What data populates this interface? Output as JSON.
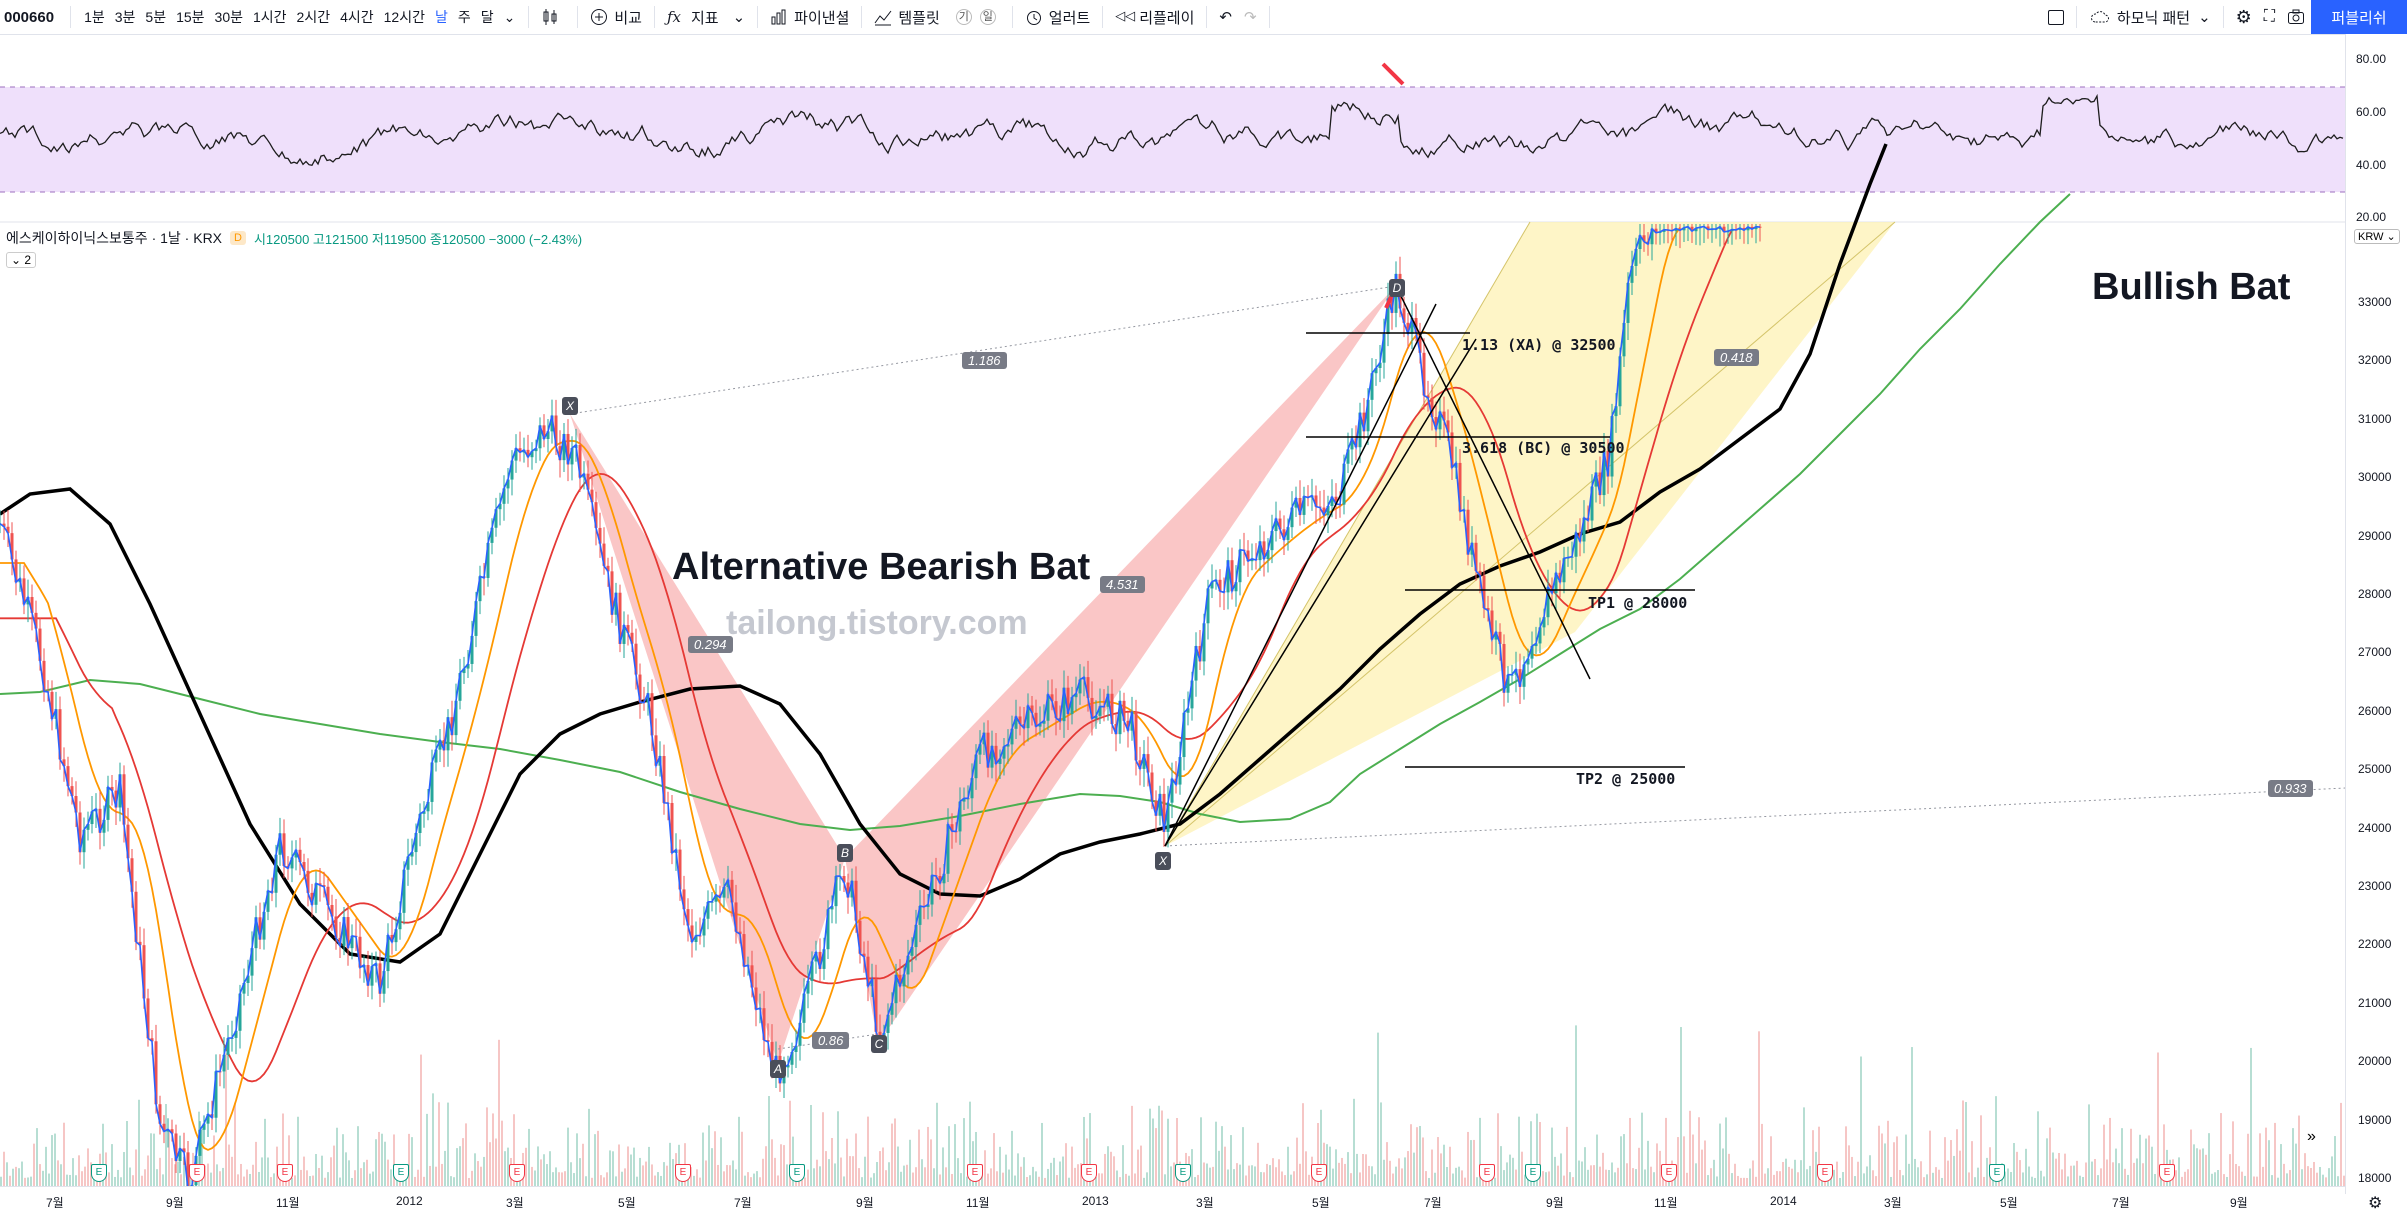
{
  "toolbar": {
    "symbol": "000660",
    "intervals": [
      "1분",
      "3분",
      "5분",
      "15분",
      "30분",
      "1시간",
      "2시간",
      "4시간",
      "12시간",
      "날",
      "주",
      "달"
    ],
    "active_interval": "날",
    "compare": "비교",
    "indicators": "지표",
    "pine_editor": "파이낸셜",
    "templates": "템플릿",
    "template_badges": [
      "기",
      "일"
    ],
    "alert": "얼러트",
    "replay": "리플레이",
    "harmonic": "하모닉 패턴",
    "publish": "퍼블리쉬"
  },
  "legend": {
    "name": "에스케이하이닉스보통주 · 1날 · KRX",
    "badge": "D",
    "ohlc": "시120500 고121500 저119500 종120500 −3000 (−2.43%)",
    "count": "2"
  },
  "currency": "KRW",
  "rsi_axis": [
    "80.00",
    "60.00",
    "40.00",
    "20.00"
  ],
  "price_axis": [
    "33000",
    "32000",
    "31000",
    "30000",
    "29000",
    "28000",
    "27000",
    "26000",
    "25000",
    "24000",
    "23000",
    "22000",
    "21000",
    "20000",
    "19000",
    "18000"
  ],
  "time_axis": [
    "7월",
    "9월",
    "11월",
    "2012",
    "3월",
    "5월",
    "7월",
    "9월",
    "11월",
    "2013",
    "3월",
    "5월",
    "7월",
    "9월",
    "11월",
    "2014",
    "3월",
    "5월",
    "7월",
    "9월"
  ],
  "annotations": {
    "bullish_bat": "Bullish Bat",
    "bearish_bat": "Alternative Bearish Bat",
    "watermark": "tailong.tistory.com",
    "xa_level": "1.13 (XA) @ 32500",
    "bc_level": "3.618 (BC) @ 30500",
    "tp1": "TP1 @ 28000",
    "tp2": "TP2 @ 25000"
  },
  "ratios": {
    "r1186": "1.186",
    "r0294": "0.294",
    "r4531": "4.531",
    "r086": "0.86",
    "r0418": "0.418",
    "r0933": "0.933"
  },
  "points": {
    "X1": "X",
    "A": "A",
    "B": "B",
    "C": "C",
    "D": "D",
    "X2": "X"
  },
  "earnings_icon": "E",
  "colors": {
    "rsi_band": "#efe0fb",
    "pattern_bear": "#f7b2b2",
    "pattern_bull": "#fdf2b4",
    "sma_black": "#000000",
    "sma_green": "#4caf50",
    "sma_red": "#e53935",
    "sma_orange": "#ff9800",
    "price_blue": "#2962ff",
    "accent": "#2962ff"
  }
}
